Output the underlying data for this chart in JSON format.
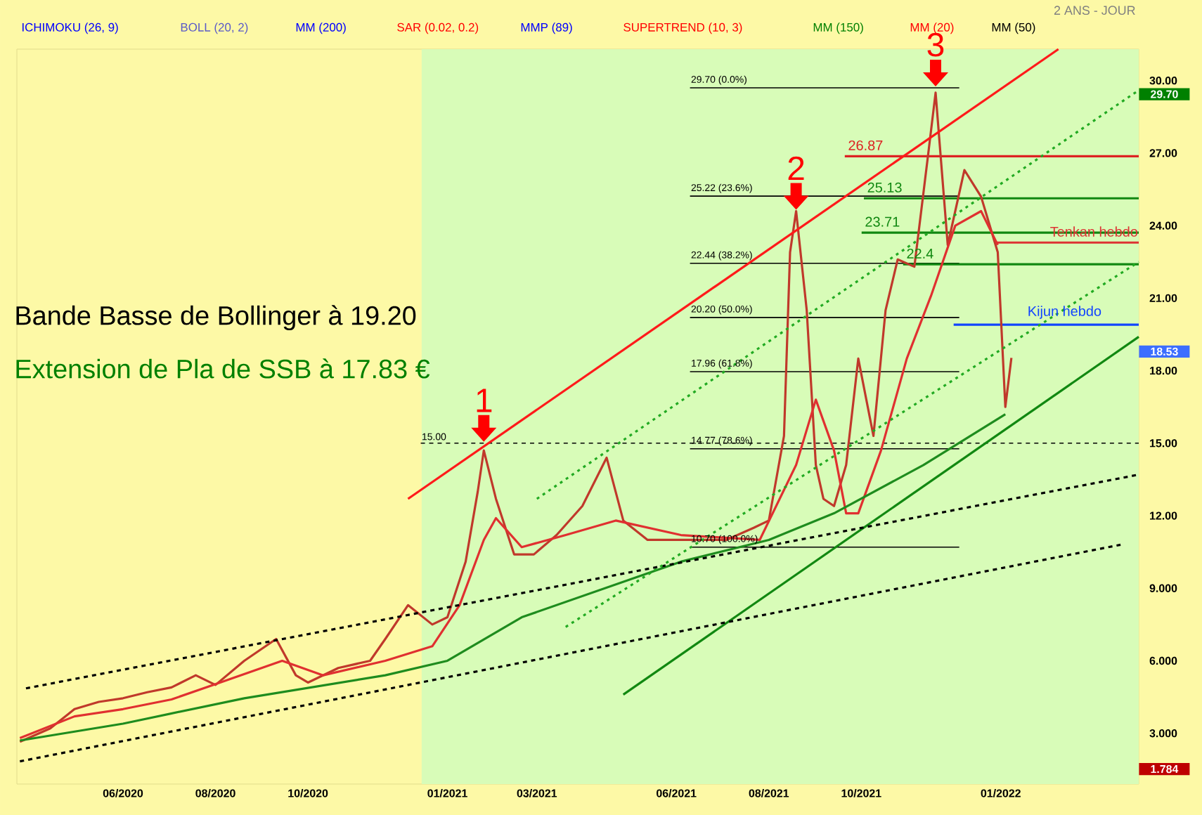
{
  "chart_data": {
    "type": "line",
    "annotations": [
      "2 ANS - JOUR",
      "ICHIMOKU (26, 9)",
      "BOLL (20, 2)",
      "MM (200)",
      "SAR (0.02, 0.2)",
      "MMP (89)",
      "SUPERTREND (10, 3)",
      "MM (150)",
      "MM (20)",
      "MM (50)",
      "Bande Basse de Bollinger à 19.20",
      "Extension de Pla de SSB à 17.83 €",
      {
        "text": "1",
        "x": "2021-01-25",
        "y": 15.0
      },
      {
        "text": "2",
        "x": "2021-08-19",
        "y": 24.6
      },
      {
        "text": "3",
        "x": "2021-11-19",
        "y": 29.7
      },
      {
        "text": "29.70",
        "x": "2022-04-02",
        "y": 29.7
      },
      {
        "text": "18.53",
        "x": "2022-04-02",
        "y": 18.53
      },
      {
        "text": "1.784",
        "x": "2022-04-02",
        "y": 1.784
      }
    ],
    "xlim": [
      "2020-03-23",
      "2022-04-02"
    ],
    "xticks": [
      {
        "value": "2020-06-01",
        "label": "06/2020"
      },
      {
        "value": "2020-08-01",
        "label": "08/2020"
      },
      {
        "value": "2020-10-01",
        "label": "10/2020"
      },
      {
        "value": "2021-01-01",
        "label": "01/2021"
      },
      {
        "value": "2021-03-01",
        "label": "03/2021"
      },
      {
        "value": "2021-06-01",
        "label": "06/2021"
      },
      {
        "value": "2021-08-01",
        "label": "08/2021"
      },
      {
        "value": "2021-10-01",
        "label": "10/2021"
      },
      {
        "value": "2022-01-01",
        "label": "01/2022"
      }
    ],
    "ylim": [
      0.9,
      31.3
    ],
    "yticks": [
      {
        "value": 3,
        "label": "3.000"
      },
      {
        "value": 6,
        "label": "6.000"
      },
      {
        "value": 9,
        "label": "9.000"
      },
      {
        "value": 12,
        "label": "12.00"
      },
      {
        "value": 15,
        "label": "15.00"
      },
      {
        "value": 18,
        "label": "18.00"
      },
      {
        "value": 21,
        "label": "21.00"
      },
      {
        "value": 24,
        "label": "24.00"
      },
      {
        "value": 27,
        "label": "27.00"
      },
      {
        "value": 30,
        "label": "30.00"
      }
    ],
    "bands": [
      {
        "axis": "x",
        "from": "2020-12-15",
        "to": "2022-04-02",
        "color": "#d8fcb8"
      }
    ],
    "ref_lines": [
      {
        "axis": "y",
        "value": 29.7,
        "label": "29.70  (0.0%)",
        "color": "#000000"
      },
      {
        "axis": "y",
        "value": 25.22,
        "label": "25.22  (23.6%)",
        "color": "#000000"
      },
      {
        "axis": "y",
        "value": 22.44,
        "label": "22.44  (38.2%)",
        "color": "#000000"
      },
      {
        "axis": "y",
        "value": 20.2,
        "label": "20.20  (50.0%)",
        "color": "#000000"
      },
      {
        "axis": "y",
        "value": 17.96,
        "label": "17.96  (61.8%)",
        "color": "#000000"
      },
      {
        "axis": "y",
        "value": 14.77,
        "label": "14.77  (78.6%)",
        "color": "#000000"
      },
      {
        "axis": "y",
        "value": 10.7,
        "label": "10.70  (100.0%)",
        "color": "#000000"
      },
      {
        "axis": "y",
        "value": 15.0,
        "label": "15.00",
        "color": "#000000",
        "line_style": "dashed"
      },
      {
        "axis": "y",
        "value": 26.87,
        "label": "26.87",
        "color": "#dd2222"
      },
      {
        "axis": "y",
        "value": 25.13,
        "label": "25.13",
        "color": "#118811"
      },
      {
        "axis": "y",
        "value": 23.71,
        "label": "23.71",
        "color": "#118811"
      },
      {
        "axis": "y",
        "value": 22.4,
        "label": "22.4",
        "color": "#118811"
      },
      {
        "axis": "y",
        "value": 23.3,
        "label": "Tenkan hebdo",
        "color": "#dd3333"
      },
      {
        "axis": "y",
        "value": 19.9,
        "label": "Kijun hebdo",
        "color": "#1144ff"
      }
    ],
    "series": [
      {
        "color": "#c0392b",
        "x": [
          "2020-03-25",
          "2020-04-14",
          "2020-04-30",
          "2020-05-16",
          "2020-06-01",
          "2020-06-17",
          "2020-07-03",
          "2020-07-19",
          "2020-08-01",
          "2020-08-20",
          "2020-09-10",
          "2020-09-23",
          "2020-10-01",
          "2020-10-21",
          "2020-11-11",
          "2020-11-21",
          "2020-12-06",
          "2020-12-22",
          "2021-01-01",
          "2021-01-13",
          "2021-01-21",
          "2021-01-25",
          "2021-02-02",
          "2021-02-14",
          "2021-02-27",
          "2021-03-14",
          "2021-03-31",
          "2021-04-16",
          "2021-04-27",
          "2021-05-13",
          "2021-06-01",
          "2021-06-17",
          "2021-07-04",
          "2021-07-22",
          "2021-08-01",
          "2021-08-11",
          "2021-08-15",
          "2021-08-19",
          "2021-08-26",
          "2021-09-01",
          "2021-09-06",
          "2021-09-13",
          "2021-09-21",
          "2021-09-29",
          "2021-10-09",
          "2021-10-17",
          "2021-10-25",
          "2021-11-05",
          "2021-11-14",
          "2021-11-19",
          "2021-11-27",
          "2021-12-08",
          "2021-12-19",
          "2021-12-30",
          "2022-01-04",
          "2022-01-08"
        ],
        "values": [
          2.65,
          3.2,
          4.0,
          4.3,
          4.45,
          4.7,
          4.9,
          5.4,
          5.0,
          6.0,
          6.9,
          5.4,
          5.1,
          5.7,
          6.0,
          6.9,
          8.3,
          7.5,
          7.8,
          10.1,
          13.0,
          14.7,
          12.7,
          10.4,
          10.4,
          11.2,
          12.4,
          14.4,
          11.8,
          11.0,
          11.0,
          11.0,
          11.0,
          11.5,
          11.8,
          15.3,
          22.9,
          24.6,
          20.5,
          14.1,
          12.7,
          12.4,
          14.1,
          18.5,
          15.3,
          20.5,
          22.6,
          22.3,
          26.9,
          29.5,
          23.2,
          26.3,
          25.2,
          22.9,
          16.5,
          18.53
        ]
      },
      {
        "color": "#e03030",
        "x": [
          "2020-03-25",
          "2020-04-30",
          "2020-06-01",
          "2020-07-03",
          "2020-08-04",
          "2020-09-14",
          "2020-10-11",
          "2020-11-21",
          "2020-12-22",
          "2021-01-09",
          "2021-01-25",
          "2021-02-02",
          "2021-02-19",
          "2021-03-20",
          "2021-04-22",
          "2021-06-04",
          "2021-07-26",
          "2021-08-19",
          "2021-09-01",
          "2021-09-13",
          "2021-09-21",
          "2021-09-29",
          "2021-10-14",
          "2021-10-31",
          "2021-11-16",
          "2021-12-02",
          "2021-12-19",
          "2021-12-30"
        ],
        "values": [
          2.8,
          3.7,
          4.0,
          4.4,
          5.1,
          6.0,
          5.4,
          6.0,
          6.6,
          8.3,
          11.0,
          11.9,
          10.7,
          11.2,
          11.8,
          11.2,
          11.0,
          14.1,
          16.8,
          14.7,
          12.1,
          12.1,
          14.7,
          18.5,
          21.1,
          24.0,
          24.6,
          23.2
        ]
      },
      {
        "color": "#1e8c1e",
        "x": [
          "2020-03-25",
          "2020-06-01",
          "2020-08-20",
          "2020-11-21",
          "2021-01-01",
          "2021-02-19",
          "2021-06-04",
          "2021-08-01",
          "2021-09-13",
          "2021-11-11",
          "2022-01-04"
        ],
        "values": [
          2.7,
          3.4,
          4.45,
          5.4,
          6.0,
          7.8,
          10.1,
          11.0,
          12.1,
          14.1,
          16.2
        ]
      },
      {
        "color": "#ff1a1a",
        "x": [
          "2020-12-06",
          "2022-02-08"
        ],
        "values": [
          12.7,
          31.3
        ]
      },
      {
        "color": "#118811",
        "x": [
          "2021-04-27",
          "2022-04-02"
        ],
        "values": [
          4.6,
          19.4
        ]
      },
      {
        "color": "#000000",
        "line_style": "dashed",
        "x": [
          "2020-03-29",
          "2022-04-02"
        ],
        "values": [
          4.86,
          13.7
        ]
      },
      {
        "color": "#000000",
        "line_style": "dashed",
        "x": [
          "2020-03-25",
          "2022-03-21"
        ],
        "values": [
          1.84,
          10.8
        ]
      },
      {
        "color": "#22aa22",
        "line_style": "dotted",
        "x": [
          "2021-03-01",
          "2022-04-02"
        ],
        "values": [
          12.7,
          29.6
        ]
      },
      {
        "color": "#22aa22",
        "line_style": "dotted",
        "x": [
          "2021-03-20",
          "2022-04-02"
        ],
        "values": [
          7.4,
          22.5
        ]
      }
    ]
  }
}
